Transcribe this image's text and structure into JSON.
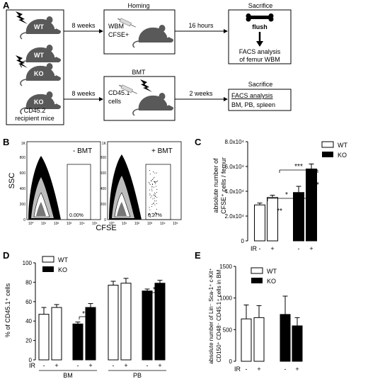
{
  "panel_a": {
    "letter": "A",
    "mouse_labels": [
      "WT",
      "WT",
      "KO",
      "KO"
    ],
    "recipient_label_1": "CD45.2",
    "recipient_label_2": "recipient mice",
    "homing": {
      "interval_1": "8 weeks",
      "title": "Homing",
      "box_line1": "WBM",
      "box_line2": "CFSE+",
      "interval_2": "16 hours",
      "end_title": "Sacrifice",
      "flush_label": "flush",
      "end_line1": "FACS analysis",
      "end_line2": "of femur WBM"
    },
    "bmt": {
      "interval_1": "8 weeks",
      "title": "BMT",
      "box_line1": "CD45.1",
      "box_line2": "cells",
      "interval_2": "2 weeks",
      "end_title": "Sacrifice",
      "end_line1": "FACS analysis",
      "end_line2": "BM, PB, spleen"
    }
  },
  "panel_b": {
    "letter": "B",
    "ylabel": "SSC",
    "xlabel": "CFSE",
    "left": {
      "label": "- BMT",
      "percent": "0.00%"
    },
    "right": {
      "label": "+ BMT",
      "percent": "0.27%"
    },
    "y_ticks": [
      "0",
      "200",
      "400",
      "600",
      "800",
      "1K"
    ],
    "x_ticks": [
      "10⁰",
      "10¹",
      "10²",
      "10³",
      "10⁴",
      "10⁵"
    ]
  },
  "panel_c": {
    "letter": "C",
    "ylabel_line1": "absolute number of",
    "ylabel_line2": "CFSE⁺ cells / femur",
    "y_ticks": [
      "0",
      "2.0x10⁴",
      "4.0x10⁴",
      "6.0x10⁴",
      "8.0x10⁴"
    ],
    "legend": [
      "WT",
      "KO"
    ],
    "ir_label": "IR",
    "ir_marks": [
      "-",
      "+",
      "-",
      "+"
    ],
    "sig": [
      "**",
      "*",
      "*",
      "***"
    ]
  },
  "panel_d": {
    "letter": "D",
    "ylabel": "% of CD45.1⁺ cells",
    "y_ticks": [
      "0",
      "20",
      "40",
      "60",
      "80",
      "100"
    ],
    "legend": [
      "WT",
      "KO"
    ],
    "ir_label": "IR",
    "ir_marks": [
      "-",
      "+",
      "-",
      "+",
      "-",
      "+",
      "-",
      "+"
    ],
    "groups": [
      "BM",
      "PB"
    ],
    "sig": [
      "**",
      "*"
    ]
  },
  "panel_e": {
    "letter": "E",
    "ylabel_line1": "absolute number of Lin⁻ Sca-1⁺ c-Kit⁺",
    "ylabel_line2": "CD150⁺ CD48⁻ CD45.1⁺ cells in BM",
    "y_ticks": [
      "0",
      "500",
      "1000",
      "1500"
    ],
    "legend": [
      "WT",
      "KO"
    ],
    "ir_label": "IR",
    "ir_marks": [
      "-",
      "+",
      "-",
      "+"
    ]
  },
  "chart_data": [
    {
      "panel": "C",
      "type": "bar",
      "categories": [
        "WT -",
        "WT +",
        "KO -",
        "KO +"
      ],
      "series": [
        {
          "name": "WT / KO",
          "values": [
            29000,
            35000,
            39000,
            58000
          ],
          "errors": [
            1500,
            1800,
            5000,
            4000
          ]
        }
      ],
      "fills": [
        "#ffffff",
        "#ffffff",
        "#000000",
        "#000000"
      ],
      "ylim": [
        0,
        80000
      ]
    },
    {
      "panel": "D",
      "type": "bar",
      "categories": [
        "BM WT -",
        "BM WT +",
        "BM KO -",
        "BM KO +",
        "PB WT -",
        "PB WT +",
        "PB KO -",
        "PB KO +"
      ],
      "series": [
        {
          "name": "WT / KO",
          "values": [
            47,
            54,
            37,
            54,
            77,
            79,
            71,
            79
          ],
          "errors": [
            7,
            3,
            2,
            4,
            4,
            5,
            2,
            3
          ]
        }
      ],
      "fills": [
        "#ffffff",
        "#ffffff",
        "#000000",
        "#000000",
        "#ffffff",
        "#ffffff",
        "#000000",
        "#000000"
      ],
      "ylim": [
        0,
        100
      ]
    },
    {
      "panel": "E",
      "type": "bar",
      "categories": [
        "WT -",
        "WT +",
        "KO -",
        "KO +"
      ],
      "series": [
        {
          "name": "WT / KO",
          "values": [
            670,
            690,
            740,
            560
          ],
          "errors": [
            220,
            190,
            290,
            130
          ]
        }
      ],
      "fills": [
        "#ffffff",
        "#ffffff",
        "#000000",
        "#000000"
      ],
      "ylim": [
        0,
        1500
      ]
    }
  ]
}
